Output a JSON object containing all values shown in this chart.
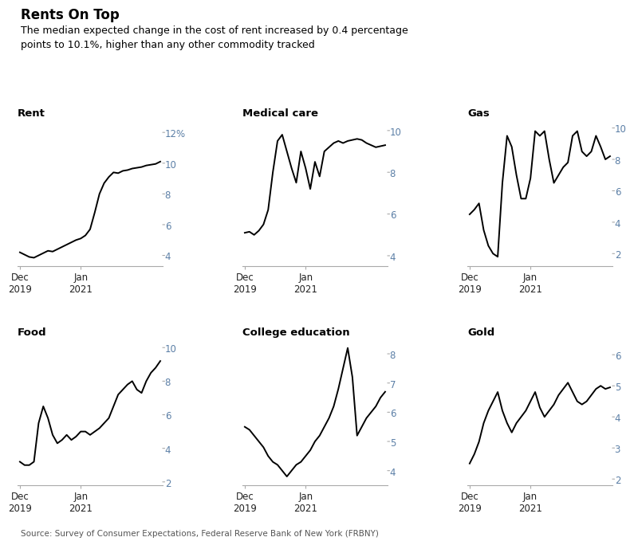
{
  "title": "Rents On Top",
  "subtitle": "The median expected change in the cost of rent increased by 0.4 percentage\npoints to 10.1%, higher than any other commodity tracked",
  "source": "Source: Survey of Consumer Expectations, Federal Reserve Bank of New York (FRBNY)",
  "title_color": "#000000",
  "subtitle_color": "#000000",
  "line_color": "#000000",
  "ytick_label_color": "#5b7fa6",
  "background_color": "#ffffff",
  "subplots": [
    {
      "title": "Rent",
      "yticks": [
        4,
        6,
        8,
        10,
        12
      ],
      "ylim": [
        3.3,
        12.8
      ],
      "ytick_labels": [
        "4",
        "6",
        "8",
        "10",
        "12%"
      ],
      "data": [
        4.2,
        4.05,
        3.9,
        3.85,
        4.0,
        4.15,
        4.3,
        4.25,
        4.4,
        4.55,
        4.7,
        4.85,
        5.0,
        5.1,
        5.3,
        5.7,
        6.8,
        8.0,
        8.7,
        9.1,
        9.4,
        9.35,
        9.5,
        9.55,
        9.65,
        9.7,
        9.75,
        9.85,
        9.9,
        9.95,
        10.1
      ]
    },
    {
      "title": "Medical care",
      "yticks": [
        4,
        6,
        8,
        10
      ],
      "ylim": [
        3.5,
        10.5
      ],
      "ytick_labels": [
        "4",
        "6",
        "8",
        "10"
      ],
      "data": [
        5.1,
        5.15,
        5.0,
        5.2,
        5.5,
        6.2,
        8.0,
        9.5,
        9.8,
        9.0,
        8.2,
        7.5,
        9.0,
        8.2,
        7.2,
        8.5,
        7.8,
        9.0,
        9.2,
        9.4,
        9.5,
        9.4,
        9.5,
        9.55,
        9.6,
        9.55,
        9.4,
        9.3,
        9.2,
        9.25,
        9.3
      ]
    },
    {
      "title": "Gas",
      "yticks": [
        2,
        4,
        6,
        8,
        10
      ],
      "ylim": [
        1.2,
        10.5
      ],
      "ytick_labels": [
        "2",
        "4",
        "6",
        "8",
        "10"
      ],
      "data": [
        4.5,
        4.8,
        5.2,
        3.5,
        2.5,
        2.0,
        1.8,
        6.5,
        9.5,
        8.8,
        7.0,
        5.5,
        5.5,
        6.8,
        9.8,
        9.5,
        9.8,
        8.0,
        6.5,
        7.0,
        7.5,
        7.8,
        9.5,
        9.8,
        8.5,
        8.2,
        8.5,
        9.5,
        8.8,
        8.0,
        8.2
      ]
    },
    {
      "title": "Food",
      "yticks": [
        2,
        4,
        6,
        8,
        10
      ],
      "ylim": [
        1.8,
        10.5
      ],
      "ytick_labels": [
        "2",
        "4",
        "6",
        "8",
        "10"
      ],
      "data": [
        3.2,
        3.0,
        3.0,
        3.2,
        5.5,
        6.5,
        5.8,
        4.8,
        4.3,
        4.5,
        4.8,
        4.5,
        4.7,
        5.0,
        5.0,
        4.8,
        5.0,
        5.2,
        5.5,
        5.8,
        6.5,
        7.2,
        7.5,
        7.8,
        8.0,
        7.5,
        7.3,
        8.0,
        8.5,
        8.8,
        9.2
      ]
    },
    {
      "title": "College education",
      "yticks": [
        4,
        5,
        6,
        7,
        8
      ],
      "ylim": [
        3.5,
        8.5
      ],
      "ytick_labels": [
        "4",
        "5",
        "6",
        "7",
        "8"
      ],
      "data": [
        5.5,
        5.4,
        5.2,
        5.0,
        4.8,
        4.5,
        4.3,
        4.2,
        4.0,
        3.8,
        4.0,
        4.2,
        4.3,
        4.5,
        4.7,
        5.0,
        5.2,
        5.5,
        5.8,
        6.2,
        6.8,
        7.5,
        8.2,
        7.2,
        5.2,
        5.5,
        5.8,
        6.0,
        6.2,
        6.5,
        6.7
      ]
    },
    {
      "title": "Gold",
      "yticks": [
        2,
        3,
        4,
        5,
        6
      ],
      "ylim": [
        1.8,
        6.5
      ],
      "ytick_labels": [
        "2",
        "3",
        "4",
        "5",
        "6"
      ],
      "data": [
        2.5,
        2.8,
        3.2,
        3.8,
        4.2,
        4.5,
        4.8,
        4.2,
        3.8,
        3.5,
        3.8,
        4.0,
        4.2,
        4.5,
        4.8,
        4.3,
        4.0,
        4.2,
        4.4,
        4.7,
        4.9,
        5.1,
        4.8,
        4.5,
        4.4,
        4.5,
        4.7,
        4.9,
        5.0,
        4.9,
        4.95
      ]
    }
  ]
}
